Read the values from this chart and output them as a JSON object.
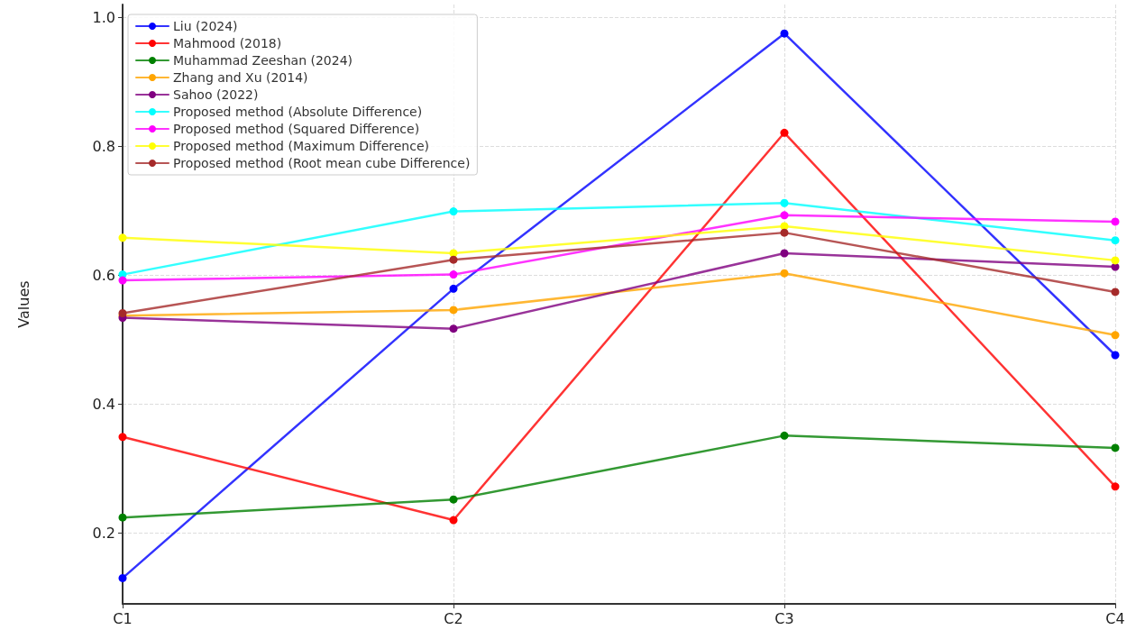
{
  "chart_data": {
    "type": "line",
    "ylabel": "Values",
    "categories": [
      "C1",
      "C2",
      "C3",
      "C4"
    ],
    "series": [
      {
        "name": "Liu (2024)",
        "color": "#0000ff",
        "values": [
          0.13,
          0.579,
          0.975,
          0.476
        ]
      },
      {
        "name": "Mahmood (2018)",
        "color": "#ff0000",
        "values": [
          0.349,
          0.22,
          0.821,
          0.272
        ]
      },
      {
        "name": "Muhammad Zeeshan (2024)",
        "color": "#008000",
        "values": [
          0.224,
          0.252,
          0.351,
          0.332
        ]
      },
      {
        "name": "Zhang and Xu (2014)",
        "color": "#ffa500",
        "values": [
          0.537,
          0.546,
          0.603,
          0.507
        ]
      },
      {
        "name": "Sahoo (2022)",
        "color": "#800080",
        "values": [
          0.534,
          0.517,
          0.634,
          0.613
        ]
      },
      {
        "name": "Proposed method (Absolute Difference)",
        "color": "#00ffff",
        "values": [
          0.601,
          0.699,
          0.712,
          0.654
        ]
      },
      {
        "name": "Proposed method (Squared Difference)",
        "color": "#ff00ff",
        "values": [
          0.592,
          0.601,
          0.693,
          0.683
        ]
      },
      {
        "name": "Proposed method (Maximum Difference)",
        "color": "#ffff00",
        "values": [
          0.658,
          0.634,
          0.676,
          0.623
        ]
      },
      {
        "name": "Proposed method (Root mean cube Difference)",
        "color": "#a52a2a",
        "values": [
          0.541,
          0.624,
          0.666,
          0.574
        ]
      }
    ],
    "ylim": [
      0.09,
      1.02
    ],
    "yticks": [
      0.2,
      0.4,
      0.6,
      0.8,
      {
        "value": 1,
        "label": "1.0"
      }
    ],
    "grid": true,
    "legend": "top left",
    "marker": "circle",
    "line_style": "solid"
  }
}
